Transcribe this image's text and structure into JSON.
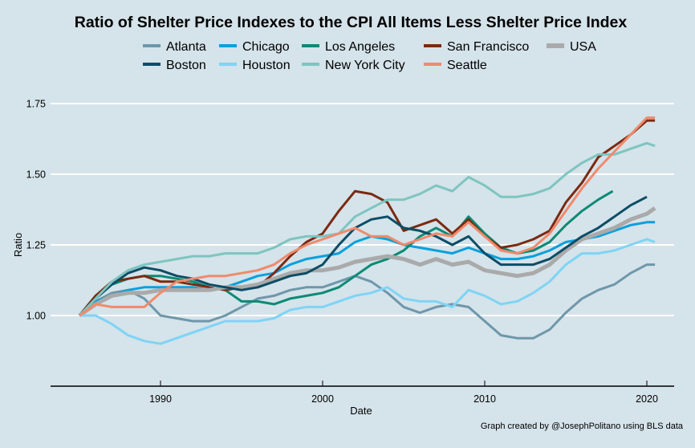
{
  "chart_data": {
    "type": "line",
    "title": "Ratio of Shelter Price Indexes to the CPI All Items Less Shelter Price Index",
    "xlabel": "Date",
    "ylabel": "Ratio",
    "caption": "Graph created by @JosephPolitano using BLS data",
    "xlim": [
      1981.8,
      2022.2
    ],
    "ylim": [
      0.75,
      1.8
    ],
    "x_ticks": [
      1990,
      2000,
      2010,
      2020
    ],
    "x_tick_labels": [
      "1990",
      "2000",
      "2010",
      "2020"
    ],
    "y_ticks": [
      1.0,
      1.25,
      1.5,
      1.75
    ],
    "y_tick_labels": [
      "1.00",
      "1.25",
      "1.50",
      "1.75"
    ],
    "grid": "horizontal major",
    "legend_position": "top",
    "series": [
      {
        "name": "Atlanta",
        "color": "#6e97aa",
        "width": 3,
        "x": [
          1985,
          1986,
          1987,
          1988,
          1989,
          1990,
          1991,
          1992,
          1993,
          1994,
          1995,
          1996,
          1997,
          1998,
          1999,
          2000,
          2001,
          2002,
          2003,
          2004,
          2005,
          2006,
          2007,
          2008,
          2009,
          2010,
          2011,
          2012,
          2013,
          2014,
          2015,
          2016,
          2017,
          2018,
          2019,
          2020,
          2020.5
        ],
        "y": [
          1.0,
          1.05,
          1.08,
          1.09,
          1.06,
          1.0,
          0.99,
          0.98,
          0.98,
          1.0,
          1.03,
          1.06,
          1.07,
          1.09,
          1.1,
          1.1,
          1.12,
          1.14,
          1.12,
          1.08,
          1.03,
          1.01,
          1.03,
          1.04,
          1.03,
          0.98,
          0.93,
          0.92,
          0.92,
          0.95,
          1.01,
          1.06,
          1.09,
          1.11,
          1.15,
          1.18,
          1.18
        ]
      },
      {
        "name": "Chicago",
        "color": "#0aa0dc",
        "width": 3,
        "x": [
          1985,
          1986,
          1987,
          1988,
          1989,
          1990,
          1991,
          1992,
          1993,
          1994,
          1995,
          1996,
          1997,
          1998,
          1999,
          2000,
          2001,
          2002,
          2003,
          2004,
          2005,
          2006,
          2007,
          2008,
          2009,
          2010,
          2011,
          2012,
          2013,
          2014,
          2015,
          2016,
          2017,
          2018,
          2019,
          2020,
          2020.5
        ],
        "y": [
          1.0,
          1.05,
          1.07,
          1.09,
          1.1,
          1.1,
          1.1,
          1.1,
          1.09,
          1.1,
          1.12,
          1.14,
          1.15,
          1.18,
          1.2,
          1.21,
          1.22,
          1.26,
          1.28,
          1.27,
          1.25,
          1.24,
          1.23,
          1.22,
          1.24,
          1.22,
          1.2,
          1.2,
          1.21,
          1.23,
          1.26,
          1.27,
          1.28,
          1.3,
          1.32,
          1.33,
          1.33
        ]
      },
      {
        "name": "Los Angeles",
        "color": "#0b8a75",
        "width": 3,
        "x": [
          1985,
          1986,
          1987,
          1988,
          1989,
          1990,
          1991,
          1992,
          1993,
          1994,
          1995,
          1996,
          1997,
          1998,
          1999,
          2000,
          2001,
          2002,
          2003,
          2004,
          2005,
          2006,
          2007,
          2008,
          2009,
          2010,
          2011,
          2012,
          2013,
          2014,
          2015,
          2016,
          2017,
          2017.9
        ],
        "y": [
          1.0,
          1.07,
          1.11,
          1.13,
          1.14,
          1.14,
          1.13,
          1.12,
          1.1,
          1.09,
          1.05,
          1.05,
          1.04,
          1.06,
          1.07,
          1.08,
          1.1,
          1.14,
          1.18,
          1.2,
          1.23,
          1.28,
          1.31,
          1.28,
          1.35,
          1.29,
          1.24,
          1.22,
          1.23,
          1.26,
          1.32,
          1.37,
          1.41,
          1.44
        ]
      },
      {
        "name": "San Francisco",
        "color": "#7b2a12",
        "width": 3,
        "x": [
          1985,
          1986,
          1987,
          1988,
          1989,
          1990,
          1991,
          1992,
          1993,
          1994,
          1995,
          1996,
          1997,
          1998,
          1999,
          2000,
          2001,
          2002,
          2003,
          2004,
          2005,
          2006,
          2007,
          2008,
          2009,
          2010,
          2011,
          2012,
          2013,
          2014,
          2015,
          2016,
          2017,
          2018,
          2019,
          2020,
          2020.5
        ],
        "y": [
          1.0,
          1.07,
          1.12,
          1.13,
          1.14,
          1.12,
          1.12,
          1.11,
          1.1,
          1.09,
          1.1,
          1.1,
          1.15,
          1.21,
          1.26,
          1.29,
          1.37,
          1.44,
          1.43,
          1.4,
          1.3,
          1.32,
          1.34,
          1.29,
          1.34,
          1.28,
          1.24,
          1.25,
          1.27,
          1.3,
          1.4,
          1.47,
          1.56,
          1.6,
          1.64,
          1.69,
          1.69
        ]
      },
      {
        "name": "USA",
        "color": "#aaaaaa",
        "width": 5,
        "x": [
          1985,
          1986,
          1987,
          1988,
          1989,
          1990,
          1991,
          1992,
          1993,
          1994,
          1995,
          1996,
          1997,
          1998,
          1999,
          2000,
          2001,
          2002,
          2003,
          2004,
          2005,
          2006,
          2007,
          2008,
          2009,
          2010,
          2011,
          2012,
          2013,
          2014,
          2015,
          2016,
          2017,
          2018,
          2019,
          2020,
          2020.5
        ],
        "y": [
          1.0,
          1.04,
          1.07,
          1.08,
          1.08,
          1.09,
          1.09,
          1.09,
          1.09,
          1.1,
          1.1,
          1.11,
          1.13,
          1.15,
          1.16,
          1.16,
          1.17,
          1.19,
          1.2,
          1.21,
          1.2,
          1.18,
          1.2,
          1.18,
          1.19,
          1.16,
          1.15,
          1.14,
          1.15,
          1.18,
          1.23,
          1.27,
          1.29,
          1.31,
          1.34,
          1.36,
          1.38
        ]
      },
      {
        "name": "Boston",
        "color": "#0c4d66",
        "width": 3,
        "x": [
          1985,
          1986,
          1987,
          1988,
          1989,
          1990,
          1991,
          1992,
          1993,
          1994,
          1995,
          1996,
          1997,
          1998,
          1999,
          2000,
          2001,
          2002,
          2003,
          2004,
          2005,
          2006,
          2007,
          2008,
          2009,
          2010,
          2011,
          2012,
          2013,
          2014,
          2015,
          2016,
          2017,
          2018,
          2019,
          2020
        ],
        "y": [
          1.0,
          1.06,
          1.11,
          1.15,
          1.17,
          1.16,
          1.14,
          1.13,
          1.11,
          1.1,
          1.09,
          1.1,
          1.12,
          1.14,
          1.15,
          1.18,
          1.25,
          1.31,
          1.34,
          1.35,
          1.31,
          1.3,
          1.28,
          1.25,
          1.28,
          1.22,
          1.18,
          1.18,
          1.18,
          1.2,
          1.24,
          1.28,
          1.31,
          1.35,
          1.39,
          1.42
        ]
      },
      {
        "name": "Houston",
        "color": "#7fd4f5",
        "width": 3,
        "x": [
          1985,
          1986,
          1987,
          1988,
          1989,
          1990,
          1991,
          1992,
          1993,
          1994,
          1995,
          1996,
          1997,
          1998,
          1999,
          2000,
          2001,
          2002,
          2003,
          2004,
          2005,
          2006,
          2007,
          2008,
          2009,
          2010,
          2011,
          2012,
          2013,
          2014,
          2015,
          2016,
          2017,
          2018,
          2019,
          2020,
          2020.5
        ],
        "y": [
          1.0,
          1.0,
          0.97,
          0.93,
          0.91,
          0.9,
          0.92,
          0.94,
          0.96,
          0.98,
          0.98,
          0.98,
          0.99,
          1.02,
          1.03,
          1.03,
          1.05,
          1.07,
          1.08,
          1.1,
          1.06,
          1.05,
          1.05,
          1.03,
          1.09,
          1.07,
          1.04,
          1.05,
          1.08,
          1.12,
          1.18,
          1.22,
          1.22,
          1.23,
          1.25,
          1.27,
          1.26
        ]
      },
      {
        "name": "New York City",
        "color": "#7ec5c0",
        "width": 3,
        "x": [
          1985,
          1986,
          1987,
          1988,
          1989,
          1990,
          1991,
          1992,
          1993,
          1994,
          1995,
          1996,
          1997,
          1998,
          1999,
          2000,
          2001,
          2002,
          2003,
          2004,
          2005,
          2006,
          2007,
          2008,
          2009,
          2010,
          2011,
          2012,
          2013,
          2014,
          2015,
          2016,
          2017,
          2018,
          2019,
          2020,
          2020.5
        ],
        "y": [
          1.0,
          1.06,
          1.12,
          1.16,
          1.18,
          1.19,
          1.2,
          1.21,
          1.21,
          1.22,
          1.22,
          1.22,
          1.24,
          1.27,
          1.28,
          1.28,
          1.29,
          1.35,
          1.38,
          1.41,
          1.41,
          1.43,
          1.46,
          1.44,
          1.49,
          1.46,
          1.42,
          1.42,
          1.43,
          1.45,
          1.5,
          1.54,
          1.57,
          1.57,
          1.59,
          1.61,
          1.6
        ]
      },
      {
        "name": "Seattle",
        "color": "#f08a6c",
        "width": 3,
        "x": [
          1985,
          1986,
          1987,
          1988,
          1989,
          1990,
          1991,
          1992,
          1993,
          1994,
          1995,
          1996,
          1997,
          1998,
          1999,
          2000,
          2001,
          2002,
          2003,
          2004,
          2005,
          2006,
          2007,
          2008,
          2009,
          2010,
          2011,
          2012,
          2013,
          2014,
          2015,
          2016,
          2017,
          2018,
          2019,
          2020,
          2020.5
        ],
        "y": [
          1.0,
          1.04,
          1.03,
          1.03,
          1.03,
          1.08,
          1.12,
          1.13,
          1.14,
          1.14,
          1.15,
          1.16,
          1.18,
          1.22,
          1.25,
          1.27,
          1.29,
          1.31,
          1.28,
          1.28,
          1.25,
          1.27,
          1.29,
          1.28,
          1.33,
          1.28,
          1.23,
          1.22,
          1.24,
          1.29,
          1.37,
          1.45,
          1.52,
          1.58,
          1.64,
          1.7,
          1.7
        ]
      }
    ]
  }
}
